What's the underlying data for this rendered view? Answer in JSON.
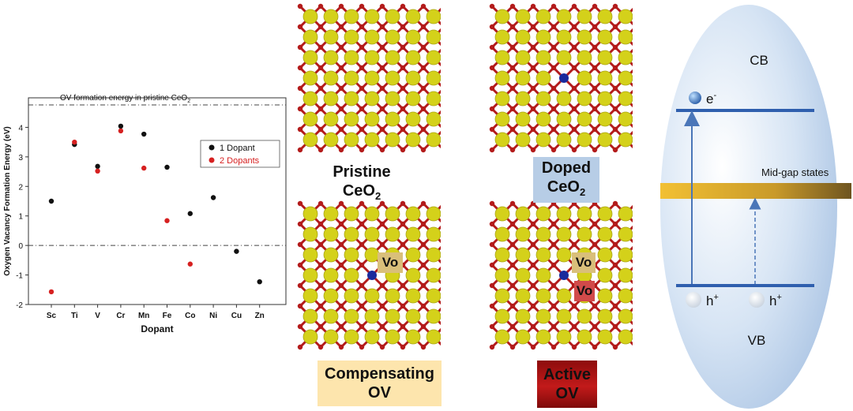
{
  "colors": {
    "ce_atom": "#d4d11a",
    "o_atom": "#b31b1b",
    "bond": "#b31b1b",
    "dopant": "#1a2a9c",
    "band_line": "#2f5fae",
    "midgap": "#c9a227",
    "ellipse": "#c7daf0",
    "doped_box": "#b7cde6",
    "comp_box": "#fde5ad",
    "active_box": "#9c0f0f",
    "vo_small_box": "#d9bf7a",
    "vo_red_box": "#d14a4a"
  },
  "chart_data": {
    "type": "scatter",
    "xlabel": "Dopant",
    "ylabel": "Oxygen Vacancy Formation Energy (eV)",
    "categories": [
      "Sc",
      "Ti",
      "V",
      "Cr",
      "Mn",
      "Fe",
      "Co",
      "Ni",
      "Cu",
      "Zn"
    ],
    "ylim": [
      -2,
      5
    ],
    "yticks": [
      -2,
      -1,
      0,
      1,
      2,
      3,
      4
    ],
    "reference_line": {
      "value": 4.76,
      "label_text": "OV formation energy in pristine CeO",
      "label_sub": "2"
    },
    "zero_line": 0,
    "legend_position": "top-right",
    "series": [
      {
        "name": "1 Dopant",
        "color": "#111111",
        "values": [
          1.5,
          3.42,
          2.68,
          4.04,
          3.77,
          2.65,
          1.08,
          1.62,
          -0.2,
          -1.23
        ]
      },
      {
        "name": "2 Dopants",
        "color": "#d62020",
        "values": [
          -1.57,
          3.5,
          2.52,
          3.88,
          2.62,
          0.84,
          -0.63,
          null,
          null,
          null
        ]
      }
    ]
  },
  "labels": {
    "pristine": "Pristine",
    "pristine_formula": "CeO",
    "pristine_sub": "2",
    "doped": "Doped",
    "doped_formula": "CeO",
    "doped_sub": "2",
    "compensating": "Compensating",
    "compensating_ov": "OV",
    "active": "Active",
    "active_ov": "OV",
    "vo_comp": "Vo",
    "vo_active_1": "Vo",
    "vo_active_2": "Vo"
  },
  "band": {
    "cb": "CB",
    "vb": "VB",
    "electron": "e",
    "electron_sup": "-",
    "hole_1": "h",
    "hole_1_sup": "+",
    "hole_2": "h",
    "hole_2_sup": "+",
    "midgap": "Mid-gap states"
  }
}
